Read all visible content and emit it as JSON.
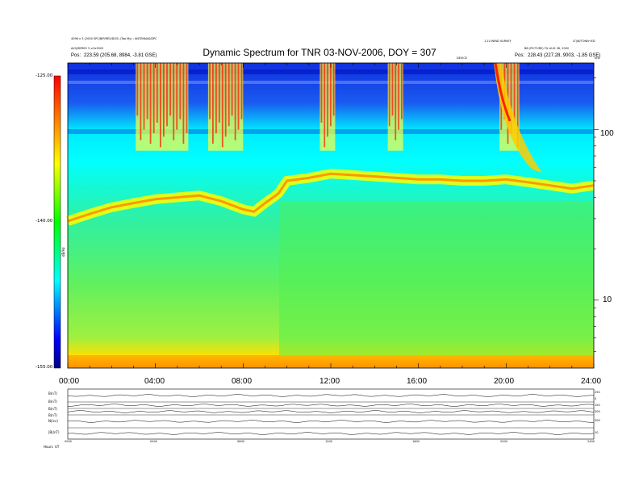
{
  "title": "Dynamic Spectrum for TNR 03-NOV-2006, DOY = 307",
  "header": {
    "left_line1": "4096 x 3 (2000 SPC/BIP/RES/DOS) (Too My) : ANTENNAS/DPC",
    "left_line2": "AI/Q/BYRES 3 ≥3x3002",
    "left_pos_label": "Pos:",
    "left_pos_value": "223.59 (205.68, 8984, -3.81 GSE)",
    "right_line1": "1.10 WIND SURVEY",
    "right_line2": "BB (PICTURE) FIL AUG 28, 2002",
    "right_pos_label": "Pos:",
    "right_pos_value": "228.43 (227.28, 9003, -1.85 GSE)",
    "right_corner": "LT(W/TONN+ED",
    "marker_label": "DEVICE",
    "unit_label": "kHz"
  },
  "colorbar": {
    "top_label": "-125.00",
    "mid_label": "-140.00",
    "bottom_label": "-155.00",
    "side_label": "dB/Hz"
  },
  "chart_data": {
    "type": "heatmap",
    "title": "Dynamic Spectrum for TNR 03-NOV-2006, DOY = 307",
    "x_axis": {
      "min_hours": 0,
      "max_hours": 24,
      "tick_labels": [
        "00:00",
        "04:00",
        "08:00",
        "12:00",
        "16:00",
        "20:00",
        "24:00"
      ]
    },
    "y_axis": {
      "scale": "log",
      "unit": "kHz",
      "range": [
        4,
        245
      ],
      "tick_labels": [
        "10",
        "100"
      ],
      "tick_values": [
        10,
        100
      ]
    },
    "colorbar": {
      "range": [
        -155,
        -125
      ],
      "labels": [
        "-125.00",
        "-140.00",
        "-155.00"
      ]
    },
    "plasma_line_khz": [
      [
        0,
        29
      ],
      [
        1,
        32
      ],
      [
        2,
        35
      ],
      [
        3,
        37
      ],
      [
        3.5,
        38
      ],
      [
        4,
        39
      ],
      [
        5,
        40
      ],
      [
        6,
        41
      ],
      [
        7,
        38
      ],
      [
        8,
        34
      ],
      [
        8.5,
        33
      ],
      [
        9,
        37
      ],
      [
        9.6,
        42
      ],
      [
        10,
        50
      ],
      [
        11,
        52
      ],
      [
        12,
        55
      ],
      [
        13,
        54
      ],
      [
        14,
        53
      ],
      [
        15,
        52
      ],
      [
        16,
        51
      ],
      [
        17,
        51
      ],
      [
        18,
        50
      ],
      [
        19,
        50
      ],
      [
        20,
        51
      ],
      [
        21,
        49
      ],
      [
        22,
        47
      ],
      [
        23,
        45
      ],
      [
        24,
        47
      ]
    ],
    "radio_bursts_hours": [
      {
        "start": 3.1,
        "end": 5.5
      },
      {
        "start": 6.4,
        "end": 8.0
      },
      {
        "start": 11.5,
        "end": 12.2
      },
      {
        "start": 14.6,
        "end": 15.3
      },
      {
        "start": 19.7,
        "end": 20.6
      }
    ]
  },
  "panels": {
    "labels": [
      "B(nT)",
      "B(nT)",
      "B(nT)",
      "B(nT)",
      "N(/cc)",
      "|B|(nT)"
    ],
    "right_values": [
      "250",
      "0",
      "150",
      "300",
      "300",
      "10"
    ],
    "x_tick_labels": [
      "0000",
      "0400",
      "0800",
      "1200",
      "1600",
      "2000",
      "2400"
    ],
    "footer_labels": [
      "Hours",
      "UT"
    ]
  }
}
